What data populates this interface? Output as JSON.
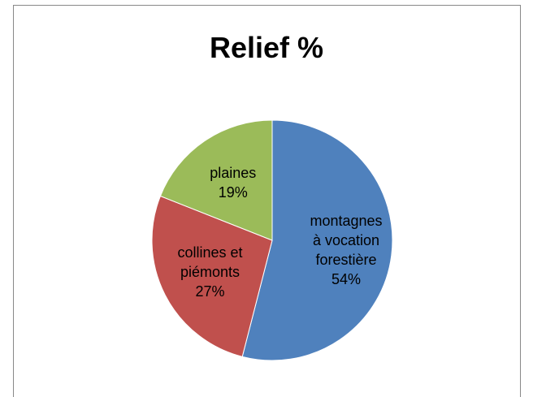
{
  "chart_data": {
    "type": "pie",
    "title": "Relief %",
    "categories": [
      "montagnes à vocation forestière",
      "collines et piémonts",
      "plaines"
    ],
    "values": [
      54,
      27,
      19
    ],
    "value_labels": [
      "54%",
      "27%",
      "19%"
    ],
    "colors": [
      "#4f81bd",
      "#c0504d",
      "#9bbb59"
    ]
  }
}
